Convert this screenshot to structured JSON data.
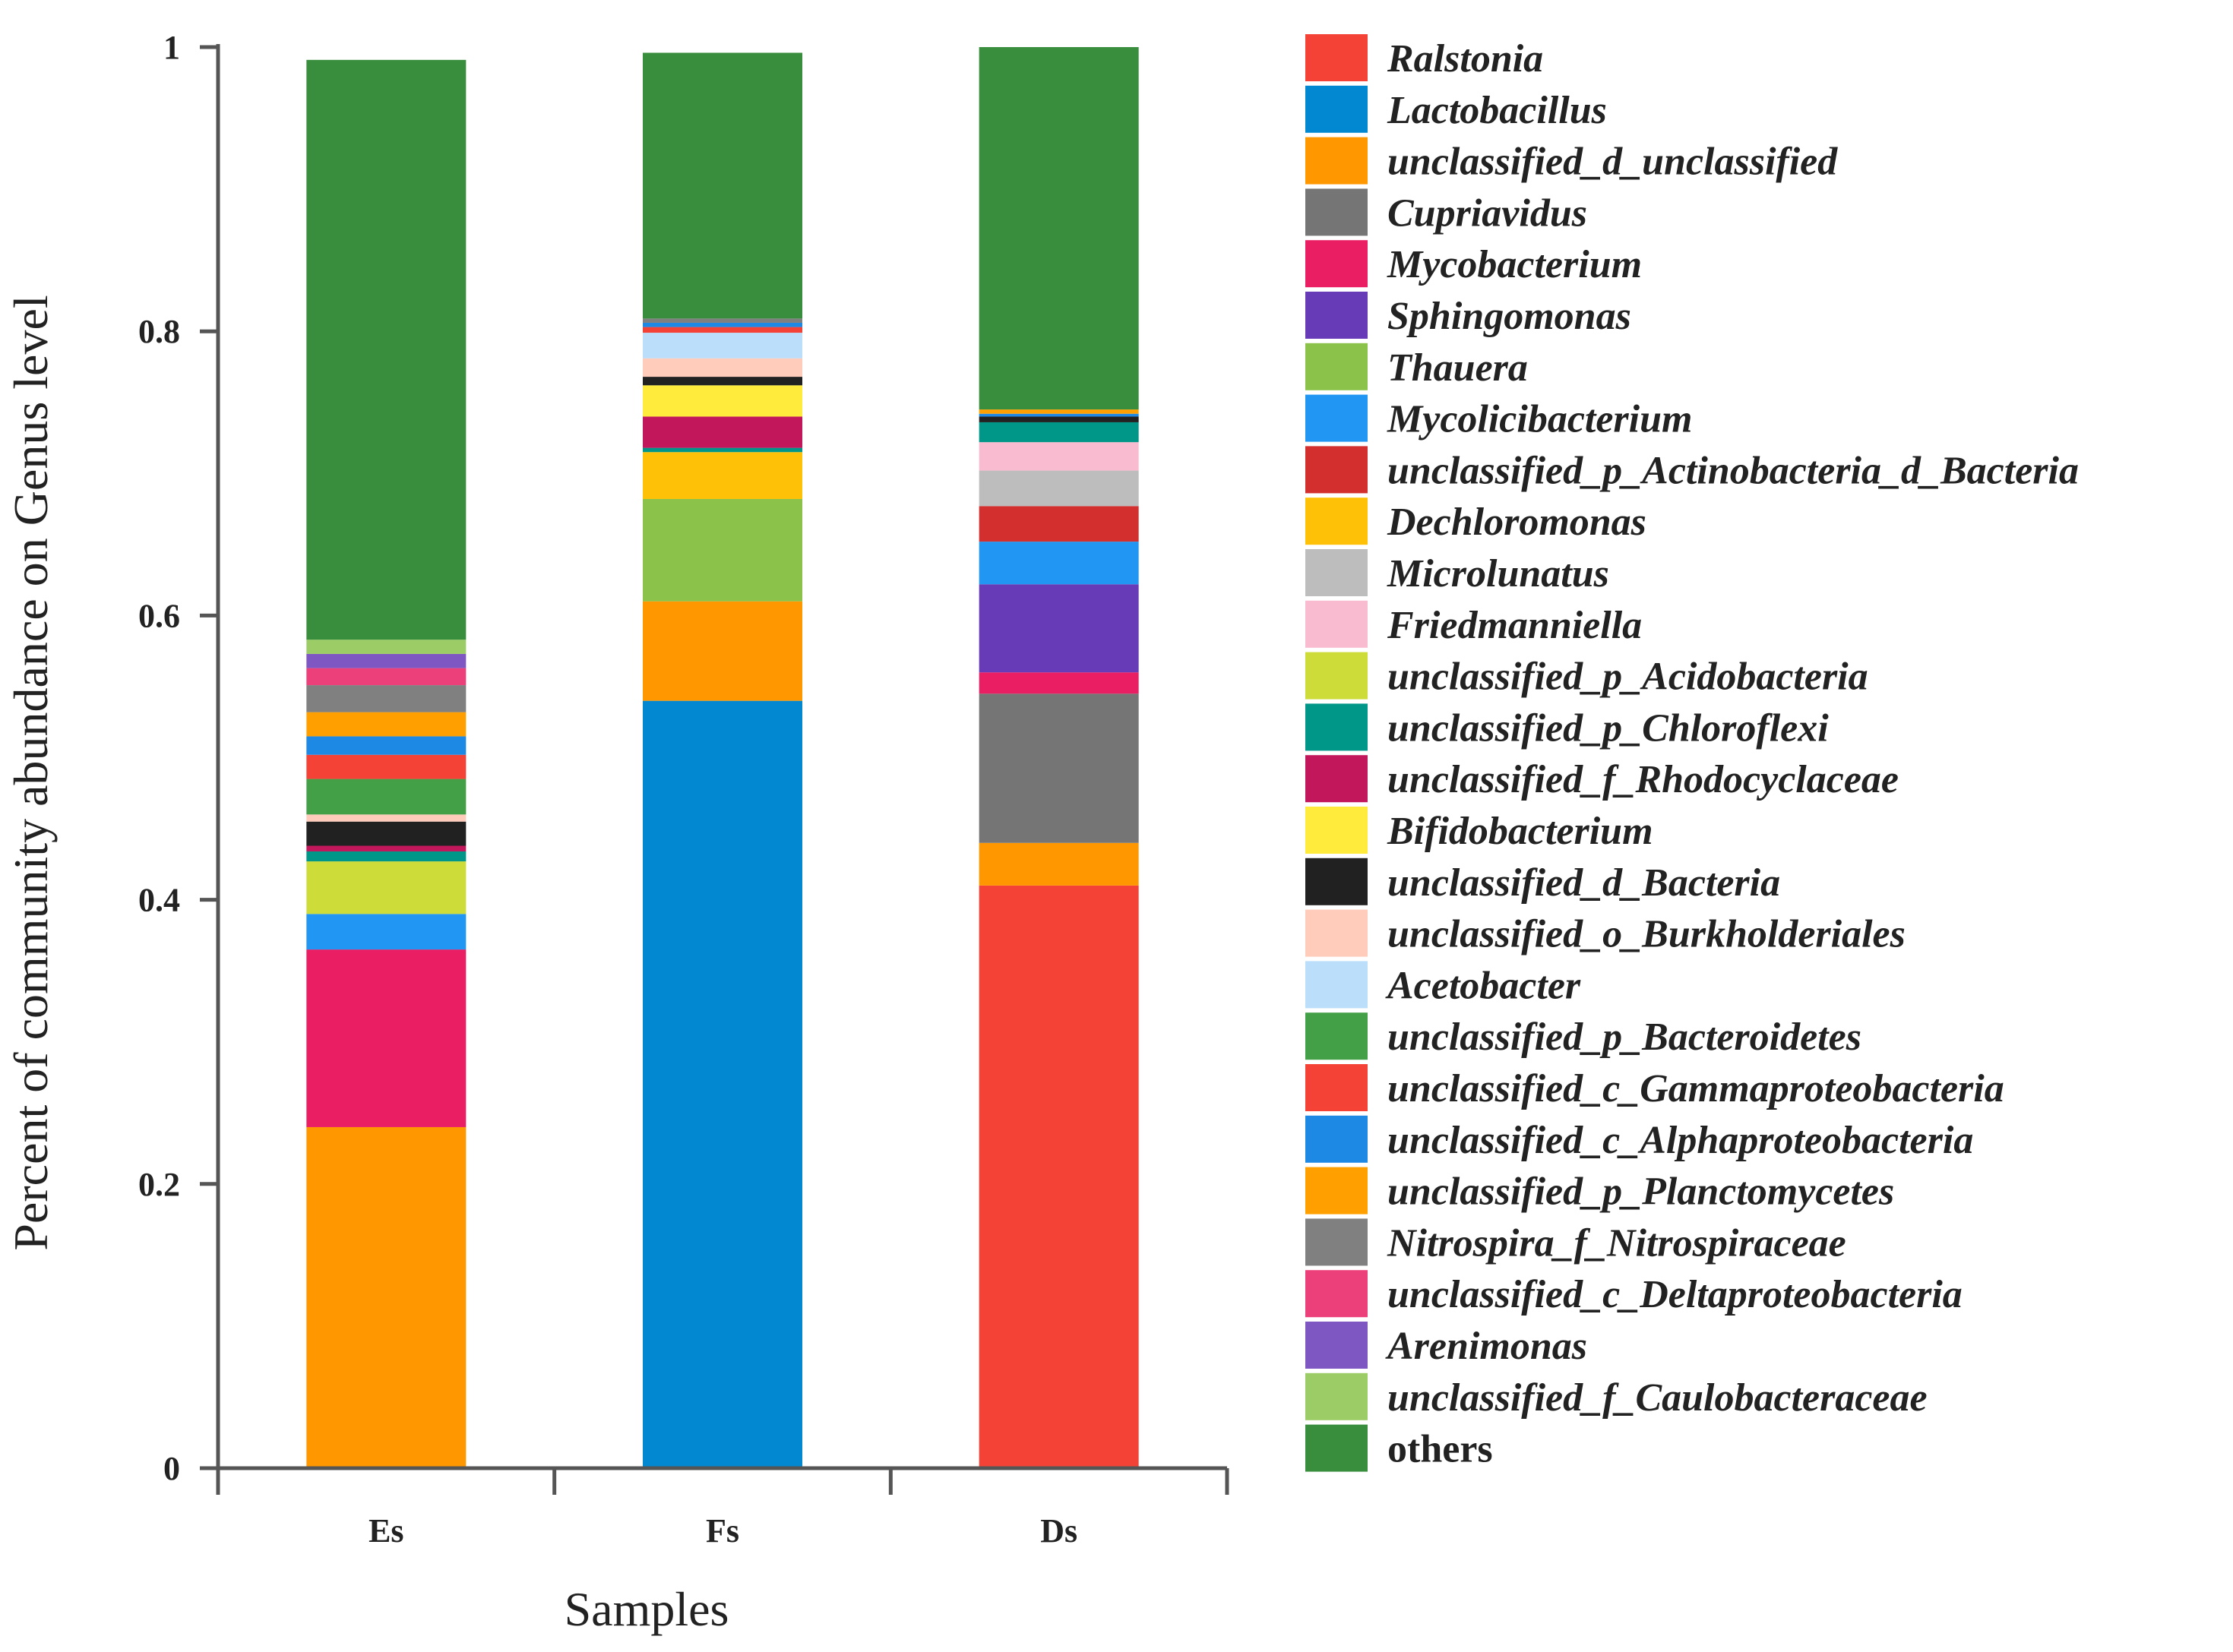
{
  "chart_data": {
    "type": "bar",
    "stacked": true,
    "title": "",
    "xlabel": "Samples",
    "ylabel": "Percent of community abundance on Genus level",
    "ylim": [
      0,
      1
    ],
    "yticks": [
      "0",
      "0.2",
      "0.4",
      "0.6",
      "0.8",
      "1"
    ],
    "categories": [
      "Es",
      "Fs",
      "Ds"
    ],
    "legend_position": "right",
    "grid": false,
    "series": [
      {
        "name": "Ralstonia",
        "color": "#f44336",
        "values": [
          0.0,
          0.0,
          0.41
        ]
      },
      {
        "name": "Lactobacillus",
        "color": "#0288d1",
        "values": [
          0.0,
          0.54,
          0.0
        ]
      },
      {
        "name": "unclassified_d_unclassified",
        "color": "#ff9800",
        "values": [
          0.24,
          0.07,
          0.03
        ]
      },
      {
        "name": "Cupriavidus",
        "color": "#757575",
        "values": [
          0.0,
          0.0,
          0.105
        ]
      },
      {
        "name": "Mycobacterium",
        "color": "#e91e63",
        "values": [
          0.125,
          0.0,
          0.015
        ]
      },
      {
        "name": "Sphingomonas",
        "color": "#673ab7",
        "values": [
          0.0,
          0.0,
          0.062
        ]
      },
      {
        "name": "Thauera",
        "color": "#8bc34a",
        "values": [
          0.0,
          0.072,
          0.0
        ]
      },
      {
        "name": "Mycolicibacterium",
        "color": "#2196f3",
        "values": [
          0.025,
          0.0,
          0.03
        ]
      },
      {
        "name": "unclassified_p_Actinobacteria_d_Bacteria",
        "color": "#d32f2f",
        "values": [
          0.0,
          0.0,
          0.025
        ]
      },
      {
        "name": "Dechloromonas",
        "color": "#ffc107",
        "values": [
          0.0,
          0.033,
          0.0
        ]
      },
      {
        "name": "Microlunatus",
        "color": "#bdbdbd",
        "values": [
          0.0,
          0.0,
          0.025
        ]
      },
      {
        "name": "Friedmanniella",
        "color": "#f8bbd0",
        "values": [
          0.0,
          0.0,
          0.02
        ]
      },
      {
        "name": "unclassified_p_Acidobacteria",
        "color": "#cddc39",
        "values": [
          0.037,
          0.0,
          0.0
        ]
      },
      {
        "name": "unclassified_p_Chloroflexi",
        "color": "#009688",
        "values": [
          0.007,
          0.003,
          0.014
        ]
      },
      {
        "name": "unclassified_f_Rhodocyclaceae",
        "color": "#c2185b",
        "values": [
          0.004,
          0.022,
          0.0
        ]
      },
      {
        "name": "Bifidobacterium",
        "color": "#ffeb3b",
        "values": [
          0.0,
          0.022,
          0.0
        ]
      },
      {
        "name": "unclassified_d_Bacteria",
        "color": "#212121",
        "values": [
          0.017,
          0.006,
          0.004
        ]
      },
      {
        "name": "unclassified_o_Burkholderiales",
        "color": "#ffccbc",
        "values": [
          0.005,
          0.013,
          0.0
        ]
      },
      {
        "name": "Acetobacter",
        "color": "#bbdefb",
        "values": [
          0.0,
          0.018,
          0.0
        ]
      },
      {
        "name": "unclassified_p_Bacteroidetes",
        "color": "#43a047",
        "values": [
          0.025,
          0.0,
          0.0
        ]
      },
      {
        "name": "unclassified_c_Gammaproteobacteria",
        "color": "#f44336",
        "values": [
          0.017,
          0.004,
          0.0
        ]
      },
      {
        "name": "unclassified_c_Alphaproteobacteria",
        "color": "#1e88e5",
        "values": [
          0.013,
          0.003,
          0.002
        ]
      },
      {
        "name": "unclassified_p_Planctomycetes",
        "color": "#ffa000",
        "values": [
          0.017,
          0.0,
          0.003
        ]
      },
      {
        "name": "Nitrospira_f_Nitrospiraceae",
        "color": "#808080",
        "values": [
          0.019,
          0.003,
          0.0
        ]
      },
      {
        "name": "unclassified_c_Deltaproteobacteria",
        "color": "#ec407a",
        "values": [
          0.012,
          0.0,
          0.0
        ]
      },
      {
        "name": "Arenimonas",
        "color": "#7e57c2",
        "values": [
          0.01,
          0.0,
          0.0
        ]
      },
      {
        "name": "unclassified_f_Caulobacteraceae",
        "color": "#9ccc65",
        "values": [
          0.01,
          0.0,
          0.0
        ]
      },
      {
        "name": "others",
        "color": "#388e3c",
        "values": [
          0.408,
          0.187,
          0.255
        ]
      }
    ]
  }
}
